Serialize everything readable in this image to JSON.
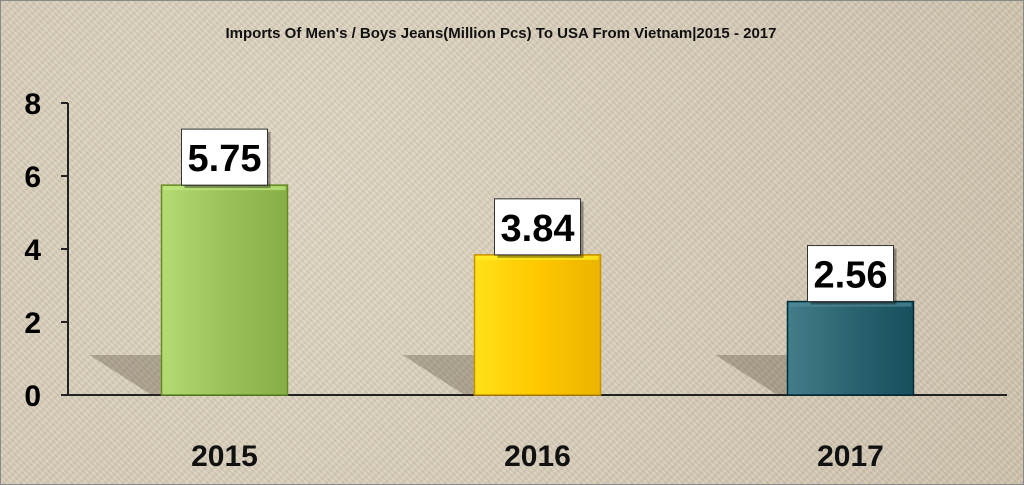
{
  "chart_data": {
    "type": "bar",
    "title": "Imports Of Men's / Boys Jeans(Million Pcs) To USA From Vietnam|2015 - 2017",
    "xlabel": "",
    "ylabel": "",
    "categories": [
      "2015",
      "2016",
      "2017"
    ],
    "values": [
      5.75,
      3.84,
      2.56
    ],
    "value_labels": [
      "5.75",
      "3.84",
      "2.56"
    ],
    "bar_colors": [
      "#9bc25a",
      "#ffc800",
      "#2b6470"
    ],
    "ylim": [
      0,
      8
    ],
    "yticks": [
      0,
      2,
      4,
      6,
      8
    ],
    "ytick_labels": [
      "0",
      "2",
      "4",
      "6",
      "8"
    ],
    "grid": false,
    "legend": "none"
  }
}
